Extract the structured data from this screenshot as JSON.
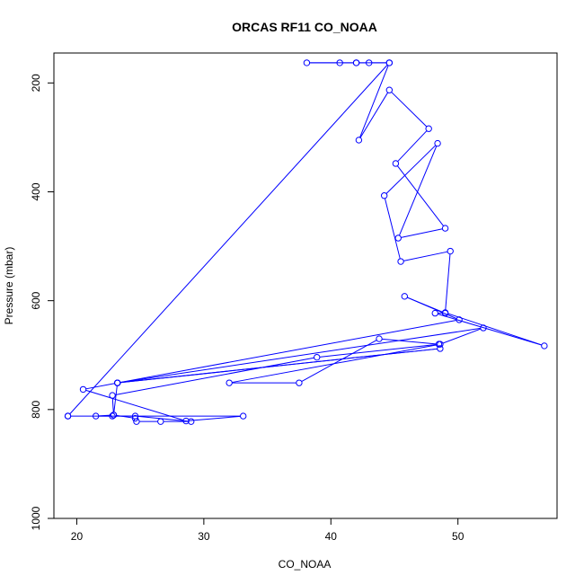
{
  "chart_data": {
    "type": "line",
    "title": "ORCAS RF11 CO_NOAA",
    "xlabel": "CO_NOAA",
    "ylabel": "Pressure (mbar)",
    "xlim": [
      18.2,
      57.8
    ],
    "ylim": [
      1000,
      145
    ],
    "y_reversed": true,
    "x_ticks": [
      20,
      30,
      40,
      50
    ],
    "y_ticks": [
      200,
      400,
      600,
      800,
      1000
    ],
    "grid": false,
    "color": "#0000ff",
    "markers": "open-circle",
    "series": [
      {
        "points": [
          [
            19.3,
            812
          ],
          [
            22.8,
            812
          ],
          [
            24.6,
            812
          ],
          [
            29.0,
            822
          ],
          [
            26.6,
            822
          ],
          [
            24.7,
            822
          ],
          [
            24.6,
            816
          ],
          [
            22.9,
            810
          ],
          [
            21.5,
            812
          ],
          [
            33.1,
            812
          ],
          [
            28.6,
            821
          ],
          [
            20.5,
            763
          ],
          [
            23.2,
            751
          ],
          [
            48.6,
            688
          ],
          [
            23.2,
            751
          ],
          [
            22.9,
            810
          ],
          [
            22.8,
            774
          ],
          [
            38.9,
            704
          ],
          [
            48.5,
            680
          ],
          [
            43.8,
            670
          ],
          [
            37.5,
            751
          ],
          [
            32.0,
            751
          ],
          [
            48.6,
            680
          ],
          [
            52.0,
            650
          ],
          [
            23.2,
            751
          ],
          [
            50.1,
            635
          ],
          [
            45.8,
            592
          ],
          [
            49.0,
            623
          ],
          [
            48.2,
            623
          ],
          [
            56.8,
            683
          ],
          [
            49.0,
            622
          ],
          [
            49.4,
            509
          ],
          [
            45.5,
            528
          ],
          [
            44.2,
            407
          ],
          [
            48.4,
            311
          ],
          [
            45.3,
            485
          ],
          [
            49.0,
            467
          ],
          [
            45.1,
            348
          ],
          [
            47.7,
            284
          ],
          [
            44.6,
            213
          ],
          [
            42.2,
            305
          ],
          [
            44.6,
            163
          ],
          [
            43.0,
            163
          ],
          [
            42.0,
            163
          ],
          [
            38.1,
            163
          ],
          [
            40.7,
            163
          ],
          [
            42.0,
            163
          ],
          [
            44.6,
            163
          ],
          [
            19.3,
            812
          ]
        ]
      }
    ]
  }
}
